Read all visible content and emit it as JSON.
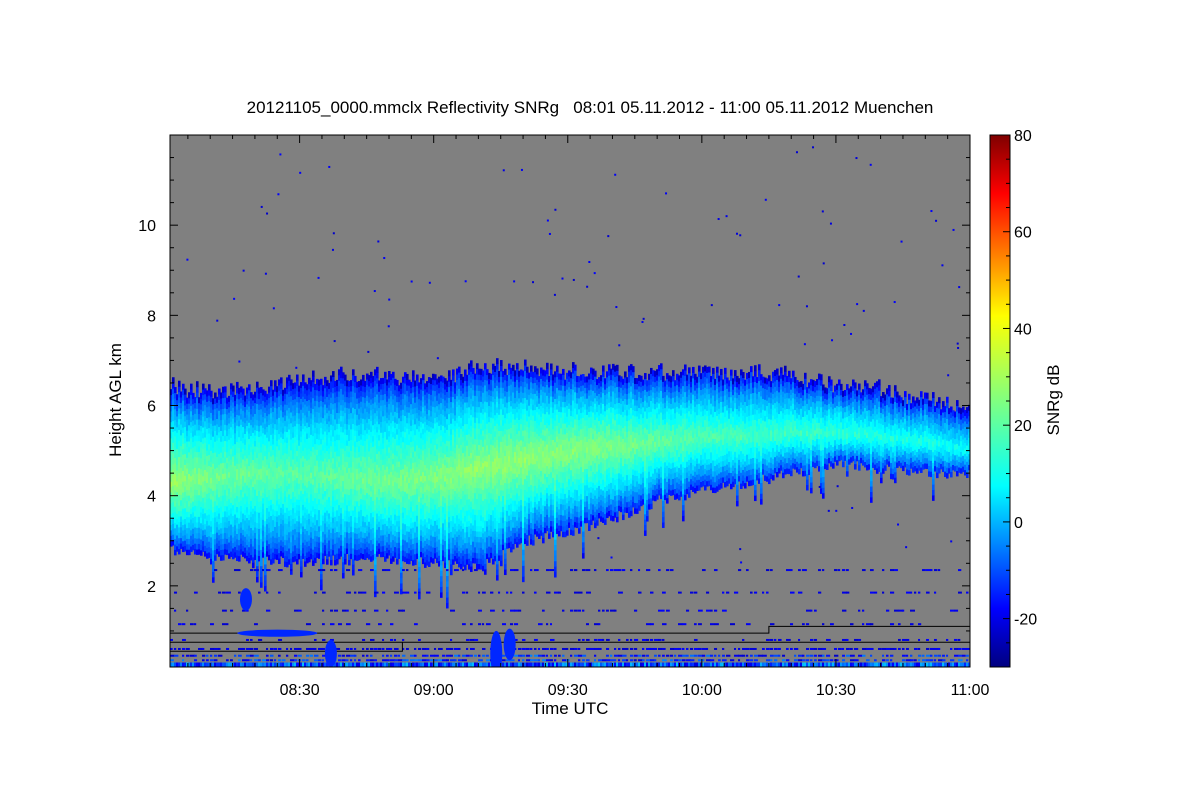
{
  "chart_data": {
    "type": "heatmap",
    "title": "20121105_0000.mmclx Reflectivity SNRg   08:01 05.11.2012 - 11:00 05.11.2012 Muenchen",
    "xlabel": "Time UTC",
    "ylabel": "Height AGL km",
    "x_ticks": [
      "08:30",
      "09:00",
      "09:30",
      "10:00",
      "10:30",
      "11:00"
    ],
    "x_tick_minutes": [
      510,
      540,
      570,
      600,
      630,
      660
    ],
    "xlim_minutes": [
      481,
      660
    ],
    "y_ticks": [
      "2",
      "4",
      "6",
      "8",
      "10"
    ],
    "y_tick_values": [
      2,
      4,
      6,
      8,
      10
    ],
    "ylim": [
      0.2,
      12
    ],
    "colorbar": {
      "label": "SNRg dB",
      "ticks": [
        "-20",
        "0",
        "20",
        "40",
        "60",
        "80"
      ],
      "tick_values": [
        -20,
        0,
        20,
        40,
        60,
        80
      ],
      "range": [
        -30,
        80
      ],
      "colormap": "jet"
    },
    "background_color": "#808080",
    "cloud_layer": {
      "time_minutes": [
        481,
        490,
        500,
        510,
        520,
        530,
        540,
        550,
        560,
        570,
        580,
        590,
        600,
        610,
        620,
        630,
        640,
        650,
        660
      ],
      "top_km": [
        6.4,
        6.2,
        6.3,
        6.5,
        6.6,
        6.6,
        6.5,
        6.8,
        6.8,
        6.7,
        6.7,
        6.7,
        6.7,
        6.7,
        6.6,
        6.4,
        6.3,
        6.1,
        5.9
      ],
      "core_km": [
        4.3,
        4.4,
        4.5,
        4.5,
        4.4,
        4.3,
        4.4,
        4.6,
        4.8,
        5.0,
        5.1,
        5.2,
        5.3,
        5.3,
        5.4,
        5.4,
        5.3,
        5.2,
        5.0
      ],
      "base_km": [
        2.8,
        2.7,
        2.6,
        2.5,
        2.6,
        2.6,
        2.5,
        2.4,
        3.0,
        3.2,
        3.5,
        3.9,
        4.1,
        4.3,
        4.5,
        4.7,
        4.6,
        4.5,
        4.5
      ],
      "core_snr_db": [
        28,
        24,
        22,
        21,
        22,
        24,
        25,
        27,
        27,
        26,
        25,
        22,
        20,
        19,
        18,
        17,
        15,
        14,
        12
      ],
      "edge_snr_db": -22
    }
  }
}
